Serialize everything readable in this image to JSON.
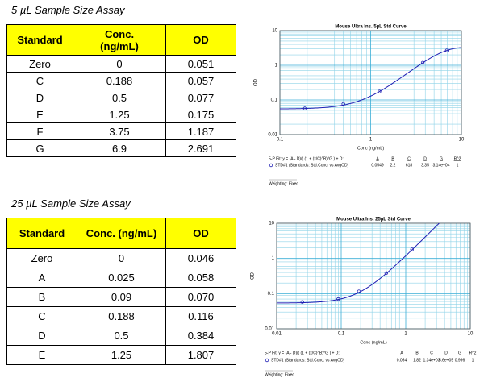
{
  "assays": [
    {
      "title": "5 µL Sample Size Assay",
      "table": {
        "headers": [
          "Standard",
          "Conc.\n(ng/mL)",
          "OD"
        ],
        "rows": [
          [
            "Zero",
            "0",
            "0.051"
          ],
          [
            "C",
            "0.188",
            "0.057"
          ],
          [
            "D",
            "0.5",
            "0.077"
          ],
          [
            "E",
            "1.25",
            "0.175"
          ],
          [
            "F",
            "3.75",
            "1.187"
          ],
          [
            "G",
            "6.9",
            "2.691"
          ]
        ]
      }
    },
    {
      "title": "25 µL Sample Size Assay",
      "table": {
        "headers": [
          "Standard",
          "Conc. (ng/mL)",
          "OD"
        ],
        "rows": [
          [
            "Zero",
            "0",
            "0.046"
          ],
          [
            "A",
            "0.025",
            "0.058"
          ],
          [
            "B",
            "0.09",
            "0.070"
          ],
          [
            "C",
            "0.188",
            "0.116"
          ],
          [
            "D",
            "0.5",
            "0.384"
          ],
          [
            "E",
            "1.25",
            "1.807"
          ]
        ]
      }
    }
  ],
  "chart_data": [
    {
      "type": "scatter",
      "title": "Mouse Ultra Ins. 5µL Std Curve",
      "x_label": "Conc (ng/mL)",
      "y_label": "OD",
      "log_x": true,
      "log_y": true,
      "grid": true,
      "xlim": [
        0.1,
        10
      ],
      "xticks": [
        0.1,
        1,
        10
      ],
      "ylim": [
        0.01,
        10
      ],
      "yticks": [
        0.01,
        0.1,
        1,
        10
      ],
      "series": [
        {
          "name": "STD#1 (Standards: Std.Conc. vs AvgOD)",
          "color": "#1f1fb4",
          "x": [
            0.188,
            0.5,
            1.25,
            3.75,
            6.9
          ],
          "values": [
            0.057,
            0.077,
            0.175,
            1.187,
            2.691
          ]
        }
      ],
      "fit": {
        "formula": "5-P Fit: y = (A - D)/( (1 + (x/C)^B)^G ) + D:",
        "headers": [
          "A",
          "B",
          "C",
          "D",
          "G",
          "R^2"
        ],
        "params": [
          0.0549,
          2.2,
          618,
          3.35,
          {
            "value": 31400,
            "label": "3.14e+04"
          },
          1
        ]
      },
      "note": "Weighting: Fixed"
    },
    {
      "type": "scatter",
      "title": "Mouse Ultra Ins. 25µL Std Curve",
      "x_label": "Conc (ng/mL)",
      "y_label": "OD",
      "log_x": true,
      "log_y": true,
      "grid": true,
      "xlim": [
        0.01,
        10
      ],
      "xticks": [
        0.01,
        0.1,
        1,
        10
      ],
      "ylim": [
        0.01,
        10
      ],
      "yticks": [
        0.01,
        0.1,
        1,
        10
      ],
      "series": [
        {
          "name": "STD#1 (Standards: Std.Conc. vs AvgOD)",
          "color": "#1f1fb4",
          "x": [
            0.025,
            0.09,
            0.188,
            0.5,
            1.25
          ],
          "values": [
            0.058,
            0.07,
            0.116,
            0.384,
            1.807
          ]
        }
      ],
      "fit": {
        "formula": "5-P Fit: y = (A - D)/( (1 + (x/C)^B)^G ) + D:",
        "headers": [
          "A",
          "B",
          "C",
          "D",
          "G",
          "R^2"
        ],
        "params": [
          0.054,
          1.82,
          {
            "value": 1340,
            "label": "1.34e+03"
          },
          {
            "value": 560000,
            "label": "5.6e+05"
          },
          0.996,
          1
        ]
      },
      "note": "Weighting: Fixed"
    }
  ]
}
